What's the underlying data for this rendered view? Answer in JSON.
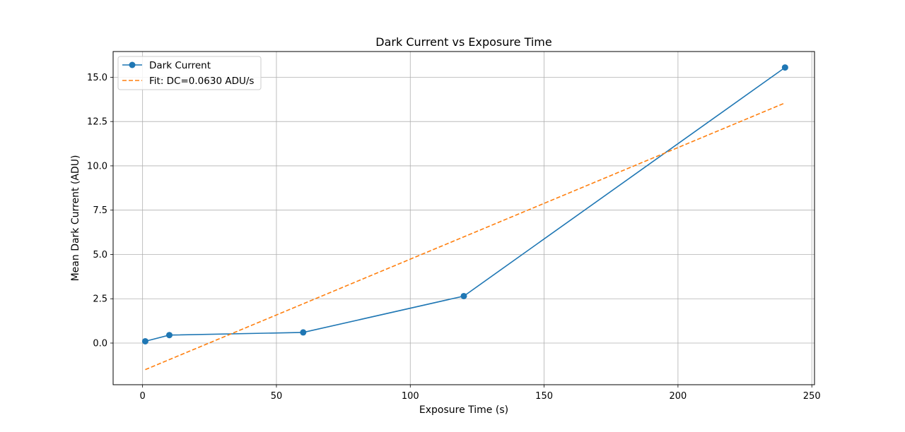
{
  "chart_data": {
    "type": "line",
    "title": "Dark Current vs Exposure Time",
    "xlabel": "Exposure Time (s)",
    "ylabel": "Mean Dark Current (ADU)",
    "xlim": [
      -11,
      251
    ],
    "ylim": [
      -2.35,
      16.45
    ],
    "xticks": [
      0,
      50,
      100,
      150,
      200,
      250
    ],
    "xtick_labels": [
      "0",
      "50",
      "100",
      "150",
      "200",
      "250"
    ],
    "yticks": [
      0,
      2.5,
      5,
      7.5,
      10,
      12.5,
      15
    ],
    "ytick_labels": [
      "0.0",
      "2.5",
      "5.0",
      "7.5",
      "10.0",
      "12.5",
      "15.0"
    ],
    "grid": true,
    "legend_position": "top-left",
    "series": [
      {
        "name": "Dark Current",
        "style": "solid-marker",
        "color": "#1f77b4",
        "x": [
          1,
          10,
          60,
          120,
          240
        ],
        "y": [
          0.1,
          0.45,
          0.6,
          2.65,
          15.55
        ]
      },
      {
        "name": "Fit: DC=0.0630 ADU/s",
        "style": "dashed",
        "color": "#ff7f0e",
        "x": [
          1,
          240
        ],
        "y": [
          -1.5,
          13.55
        ]
      }
    ]
  }
}
